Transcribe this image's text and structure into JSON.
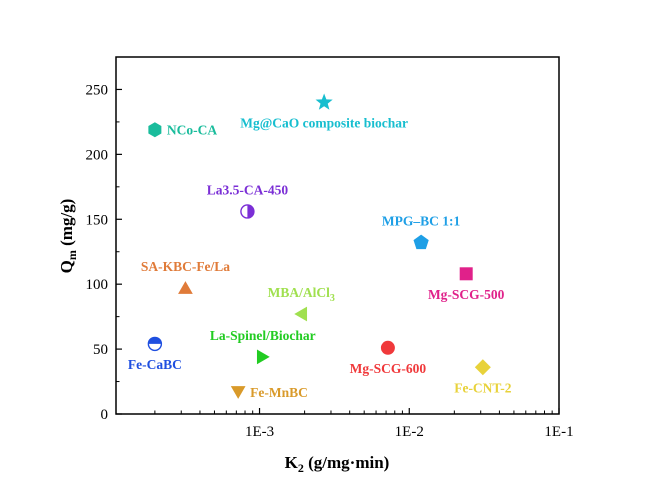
{
  "chart_data": {
    "type": "scatter",
    "title": "",
    "xlabel": {
      "main": "K",
      "sub": "2",
      "rest": " (g/mg·min)"
    },
    "ylabel": {
      "main": "Q",
      "sub": "m",
      "rest": " (mg/g)"
    },
    "x_scale": "log",
    "xlim": [
      0.00011,
      0.1
    ],
    "ylim": [
      0,
      275
    ],
    "x_ticks": [
      {
        "value": 0.001,
        "label": "1E-3"
      },
      {
        "value": 0.01,
        "label": "1E-2"
      },
      {
        "value": 0.1,
        "label": "1E-1"
      }
    ],
    "y_ticks": [
      {
        "value": 0,
        "label": "0"
      },
      {
        "value": 50,
        "label": "50"
      },
      {
        "value": 100,
        "label": "100"
      },
      {
        "value": 150,
        "label": "150"
      },
      {
        "value": 200,
        "label": "200"
      },
      {
        "value": 250,
        "label": "250"
      }
    ],
    "grid": false,
    "legend": "none",
    "points": [
      {
        "label": "NCo-CA",
        "x": 0.0002,
        "y": 219,
        "marker": "hexagon",
        "color": "#1abc9c",
        "label_pos": "right"
      },
      {
        "label": "Mg@CaO composite biochar",
        "x": 0.0027,
        "y": 240,
        "marker": "star",
        "color": "#17becf",
        "label_pos": "below"
      },
      {
        "label": "La3.5-CA-450",
        "x": 0.00083,
        "y": 156,
        "marker": "half-circle",
        "color": "#7b2fd6",
        "label_pos": "above"
      },
      {
        "label": "MPG–BC 1:1",
        "x": 0.012,
        "y": 132,
        "marker": "pentagon",
        "color": "#1e9fe6",
        "label_pos": "above"
      },
      {
        "label": "SA-KBC-Fe/La",
        "x": 0.00032,
        "y": 97,
        "marker": "triangle-up",
        "color": "#e07b39",
        "label_pos": "above"
      },
      {
        "label": "Mg-SCG-500",
        "x": 0.024,
        "y": 108,
        "marker": "square",
        "color": "#e0218a",
        "label_pos": "below"
      },
      {
        "label": "MBA/AlCl",
        "label_sub": "3",
        "x": 0.0019,
        "y": 77,
        "marker": "triangle-left",
        "color": "#a0e04f",
        "label_pos": "above"
      },
      {
        "label": "La-Spinel/Biochar",
        "x": 0.00105,
        "y": 44,
        "marker": "triangle-right",
        "color": "#22cc22",
        "label_pos": "above"
      },
      {
        "label": "Fe-CaBC",
        "x": 0.0002,
        "y": 54,
        "marker": "circle-half-top",
        "color": "#1f4fe0",
        "label_pos": "below"
      },
      {
        "label": "Mg-SCG-600",
        "x": 0.0072,
        "y": 51,
        "marker": "circle",
        "color": "#f0393b",
        "label_pos": "below"
      },
      {
        "label": "Fe-CNT-2",
        "x": 0.031,
        "y": 36,
        "marker": "diamond",
        "color": "#e8d23a",
        "label_pos": "below"
      },
      {
        "label": "Fe-MnBC",
        "x": 0.00072,
        "y": 17,
        "marker": "triangle-down",
        "color": "#d99a2a",
        "label_pos": "right"
      }
    ]
  }
}
